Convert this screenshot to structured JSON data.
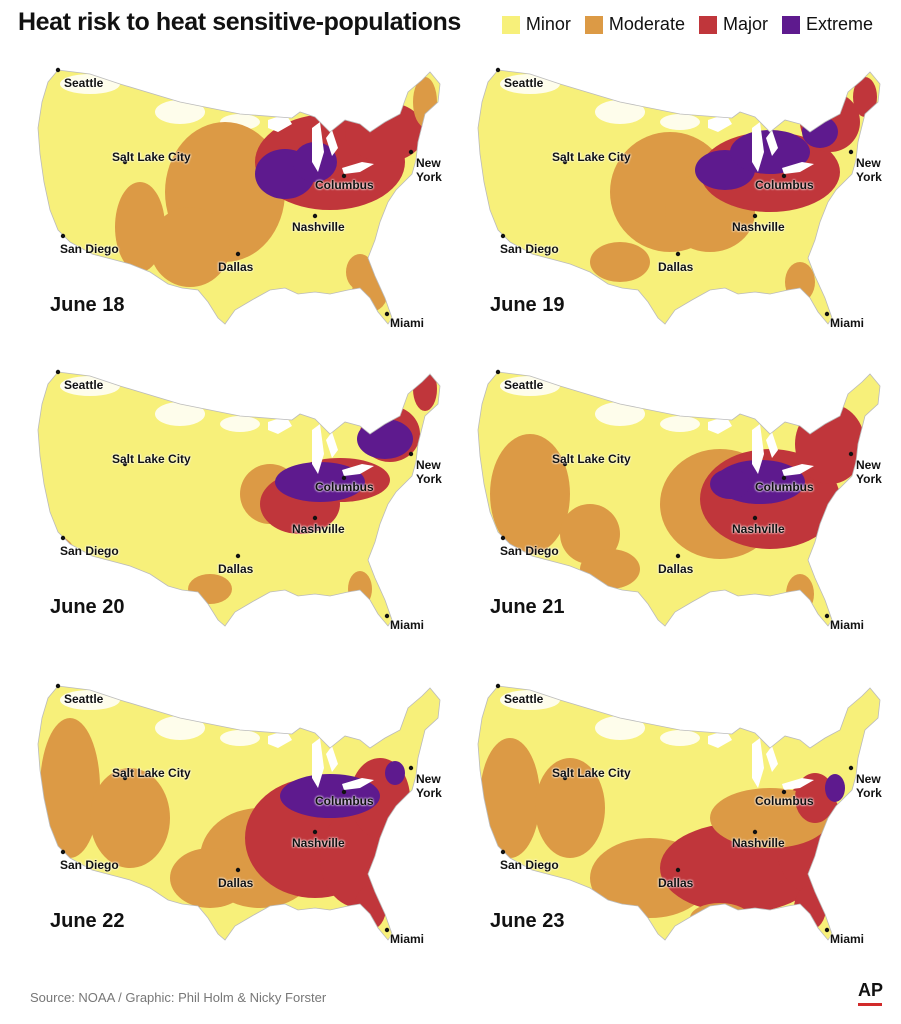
{
  "title": "Heat risk to heat sensitive-populations",
  "legend": [
    {
      "label": "Minor",
      "color": "#f7f07a"
    },
    {
      "label": "Moderate",
      "color": "#dc9a45"
    },
    {
      "label": "Major",
      "color": "#c0363b"
    },
    {
      "label": "Extreme",
      "color": "#5e1a8e"
    }
  ],
  "cities": {
    "seattle": "Seattle",
    "slc": "Salt Lake City",
    "sandiego": "San Diego",
    "dallas": "Dallas",
    "nashville": "Nashville",
    "columbus": "Columbus",
    "newyork_1": "New",
    "newyork_2": "York",
    "miami": "Miami"
  },
  "panels": [
    {
      "date": "June 18",
      "risk_pattern": "northeast-midwest-major"
    },
    {
      "date": "June 19",
      "risk_pattern": "great-lakes-extreme"
    },
    {
      "date": "June 20",
      "risk_pattern": "ohio-valley-extreme"
    },
    {
      "date": "June 21",
      "risk_pattern": "midwest-extreme"
    },
    {
      "date": "June 22",
      "risk_pattern": "eastern-major"
    },
    {
      "date": "June 23",
      "risk_pattern": "southeast-major"
    }
  ],
  "footer": {
    "source": "Source: NOAA / Graphic: Phil Holm & Nicky Forster",
    "logo": "AP"
  },
  "colors": {
    "nodata": "#ffffff",
    "outline": "#bbbbbb"
  }
}
